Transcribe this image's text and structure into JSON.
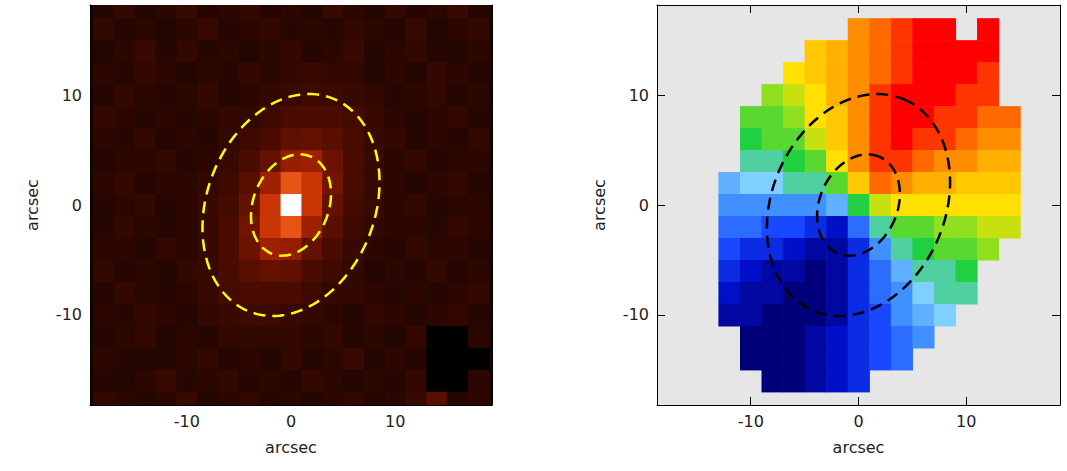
{
  "chart_data": [
    {
      "type": "heatmap",
      "color": "heat",
      "x_label": "arcsec",
      "y_label": "arcsec",
      "xlim": [
        -19.3,
        19.3
      ],
      "ylim": [
        -18.2,
        18.2
      ],
      "xticks": [
        -10,
        0,
        10
      ],
      "yticks": [
        -10,
        0,
        10
      ],
      "value_range": [
        0,
        100
      ],
      "x": [
        -18,
        -16,
        -14,
        -12,
        -10,
        -8,
        -6,
        -4,
        -2,
        0,
        2,
        4,
        6,
        8,
        10,
        12,
        14,
        16,
        18
      ],
      "y": [
        18,
        16,
        14,
        12,
        10,
        8,
        6,
        4,
        2,
        0,
        -2,
        -4,
        -6,
        -8,
        -10,
        -12,
        -14,
        -16,
        -18
      ],
      "cells": [
        [
          12,
          14,
          11,
          13,
          15,
          12,
          13,
          14,
          11,
          13,
          12,
          15,
          13,
          11,
          14,
          12,
          13,
          15,
          12
        ],
        [
          14,
          12,
          13,
          11,
          13,
          15,
          12,
          13,
          14,
          12,
          13,
          12,
          14,
          13,
          12,
          15,
          11,
          13,
          14
        ],
        [
          11,
          13,
          15,
          12,
          14,
          12,
          13,
          11,
          13,
          14,
          12,
          13,
          15,
          12,
          13,
          14,
          12,
          11,
          13
        ],
        [
          13,
          12,
          14,
          13,
          11,
          13,
          12,
          14,
          13,
          14,
          15,
          14,
          14,
          12,
          13,
          11,
          14,
          13,
          12
        ],
        [
          12,
          14,
          13,
          12,
          13,
          14,
          12,
          13,
          14,
          15,
          16,
          16,
          15,
          14,
          12,
          13,
          14,
          12,
          13
        ],
        [
          14,
          13,
          12,
          13,
          12,
          13,
          14,
          14,
          16,
          18,
          18,
          18,
          17,
          15,
          13,
          12,
          13,
          14,
          12
        ],
        [
          13,
          12,
          14,
          12,
          13,
          12,
          14,
          16,
          18,
          21,
          22,
          20,
          18,
          15,
          14,
          12,
          13,
          12,
          14
        ],
        [
          12,
          13,
          13,
          14,
          12,
          13,
          15,
          18,
          22,
          29,
          30,
          23,
          18,
          15,
          13,
          14,
          12,
          13,
          13
        ],
        [
          13,
          14,
          12,
          13,
          13,
          14,
          16,
          20,
          30,
          47,
          38,
          24,
          18,
          15,
          13,
          12,
          13,
          14,
          12
        ],
        [
          12,
          13,
          14,
          12,
          13,
          15,
          17,
          22,
          38,
          100,
          38,
          22,
          17,
          15,
          13,
          14,
          12,
          13,
          13
        ],
        [
          12,
          14,
          13,
          12,
          13,
          15,
          18,
          24,
          38,
          47,
          30,
          20,
          16,
          14,
          13,
          13,
          12,
          14,
          13
        ],
        [
          13,
          13,
          12,
          14,
          13,
          15,
          18,
          23,
          30,
          29,
          22,
          18,
          15,
          13,
          12,
          14,
          13,
          13,
          12
        ],
        [
          14,
          12,
          13,
          12,
          14,
          15,
          18,
          20,
          22,
          21,
          18,
          16,
          14,
          12,
          13,
          12,
          14,
          12,
          13
        ],
        [
          12,
          14,
          13,
          12,
          13,
          15,
          17,
          18,
          18,
          18,
          16,
          14,
          14,
          13,
          12,
          13,
          12,
          13,
          14
        ],
        [
          13,
          12,
          14,
          13,
          12,
          14,
          15,
          16,
          16,
          15,
          14,
          13,
          12,
          14,
          13,
          12,
          13,
          14,
          12
        ],
        [
          12,
          13,
          14,
          11,
          13,
          12,
          14,
          14,
          14,
          14,
          13,
          14,
          12,
          13,
          11,
          14,
          0,
          0,
          13
        ],
        [
          13,
          12,
          11,
          12,
          13,
          14,
          12,
          13,
          11,
          14,
          12,
          13,
          15,
          12,
          13,
          12,
          0,
          0,
          0
        ],
        [
          12,
          11,
          13,
          15,
          12,
          13,
          14,
          12,
          13,
          12,
          14,
          13,
          11,
          13,
          12,
          14,
          0,
          0,
          13
        ],
        [
          14,
          13,
          12,
          13,
          15,
          12,
          13,
          14,
          12,
          13,
          11,
          13,
          14,
          12,
          13,
          15,
          20,
          12,
          13
        ]
      ],
      "ellipses": [
        {
          "center": [
            0,
            0
          ],
          "a": 10.5,
          "b": 8,
          "angle": 65,
          "color": "#ffff00",
          "line_style": "dashed"
        },
        {
          "center": [
            0,
            0
          ],
          "a": 4.8,
          "b": 3.6,
          "angle": 65,
          "color": "#ffff00",
          "line_style": "dashed"
        }
      ]
    },
    {
      "type": "heatmap",
      "color": "rainbow",
      "x_label": "arcsec",
      "y_label": "arcsec",
      "xlim": [
        -18.7,
        18.7
      ],
      "ylim": [
        -18.2,
        18.2
      ],
      "xticks": [
        -10,
        0,
        10
      ],
      "yticks": [
        -10,
        0,
        10
      ],
      "value_range": [
        -100,
        100
      ],
      "x": [
        -18,
        -16,
        -14,
        -12,
        -10,
        -8,
        -6,
        -4,
        -2,
        0,
        2,
        4,
        6,
        8,
        10,
        12,
        14,
        16,
        18
      ],
      "y": [
        18,
        16,
        14,
        12,
        10,
        8,
        6,
        4,
        2,
        0,
        -2,
        -4,
        -6,
        -8,
        -10,
        -12,
        -14,
        -16,
        -18
      ],
      "cells": [
        [
          null,
          null,
          null,
          null,
          null,
          null,
          null,
          null,
          null,
          null,
          null,
          null,
          null,
          null,
          null,
          null,
          null,
          null,
          null
        ],
        [
          null,
          null,
          null,
          null,
          null,
          null,
          null,
          null,
          null,
          70,
          80,
          90,
          100,
          100,
          null,
          100,
          null,
          null,
          null
        ],
        [
          null,
          null,
          null,
          null,
          null,
          null,
          null,
          50,
          60,
          70,
          80,
          90,
          100,
          100,
          100,
          100,
          null,
          null,
          null
        ],
        [
          null,
          null,
          null,
          null,
          null,
          null,
          40,
          50,
          60,
          70,
          80,
          90,
          100,
          100,
          100,
          90,
          null,
          null,
          null
        ],
        [
          null,
          null,
          null,
          null,
          null,
          20,
          30,
          40,
          60,
          70,
          90,
          100,
          100,
          100,
          90,
          90,
          null,
          null,
          null
        ],
        [
          null,
          null,
          null,
          null,
          10,
          10,
          20,
          40,
          50,
          70,
          90,
          100,
          100,
          90,
          90,
          80,
          80,
          null,
          null
        ],
        [
          null,
          null,
          null,
          null,
          0,
          10,
          10,
          30,
          50,
          70,
          90,
          100,
          90,
          90,
          80,
          70,
          70,
          null,
          null
        ],
        [
          null,
          null,
          null,
          null,
          -10,
          -10,
          0,
          10,
          40,
          70,
          90,
          90,
          80,
          70,
          70,
          60,
          60,
          null,
          null
        ],
        [
          null,
          null,
          null,
          -30,
          -20,
          -20,
          -10,
          -10,
          10,
          50,
          80,
          70,
          60,
          60,
          50,
          50,
          50,
          null,
          null
        ],
        [
          null,
          null,
          null,
          -40,
          -40,
          -40,
          -40,
          -40,
          -30,
          0,
          30,
          40,
          40,
          40,
          40,
          40,
          40,
          null,
          null
        ],
        [
          null,
          null,
          null,
          -50,
          -50,
          -60,
          -60,
          -70,
          -80,
          -50,
          -10,
          10,
          10,
          20,
          20,
          30,
          30,
          null,
          null
        ],
        [
          null,
          null,
          null,
          -60,
          -70,
          -70,
          -80,
          -90,
          -90,
          -70,
          -40,
          -10,
          0,
          10,
          10,
          20,
          null,
          null,
          null
        ],
        [
          null,
          null,
          null,
          -70,
          -80,
          -90,
          -90,
          -100,
          -90,
          -70,
          -50,
          -30,
          -10,
          -10,
          0,
          null,
          null,
          null,
          null
        ],
        [
          null,
          null,
          null,
          -80,
          -90,
          -90,
          -100,
          -100,
          -90,
          -70,
          -50,
          -40,
          -20,
          -10,
          -10,
          null,
          null,
          null,
          null
        ],
        [
          null,
          null,
          null,
          -90,
          -90,
          -100,
          -100,
          -100,
          -90,
          -70,
          -60,
          -40,
          -30,
          -20,
          null,
          null,
          null,
          null,
          null
        ],
        [
          null,
          null,
          null,
          null,
          -100,
          -100,
          -100,
          -90,
          -80,
          -70,
          -60,
          -50,
          -40,
          null,
          null,
          null,
          null,
          null,
          null
        ],
        [
          null,
          null,
          null,
          null,
          -100,
          -100,
          -100,
          -90,
          -80,
          -70,
          -60,
          -50,
          null,
          null,
          null,
          null,
          null,
          null,
          null
        ],
        [
          null,
          null,
          null,
          null,
          null,
          -100,
          -100,
          -90,
          -80,
          -70,
          null,
          null,
          null,
          null,
          null,
          null,
          null,
          null,
          null
        ],
        [
          null,
          null,
          null,
          null,
          null,
          null,
          null,
          null,
          null,
          null,
          null,
          null,
          null,
          null,
          null,
          null,
          null,
          null,
          null
        ]
      ],
      "ellipses": [
        {
          "center": [
            0,
            0
          ],
          "a": 10.5,
          "b": 8,
          "angle": 65,
          "color": "#000000",
          "line_style": "dashed"
        },
        {
          "center": [
            0,
            0
          ],
          "a": 4.8,
          "b": 3.6,
          "angle": 65,
          "color": "#000000",
          "line_style": "dashed"
        }
      ]
    }
  ]
}
